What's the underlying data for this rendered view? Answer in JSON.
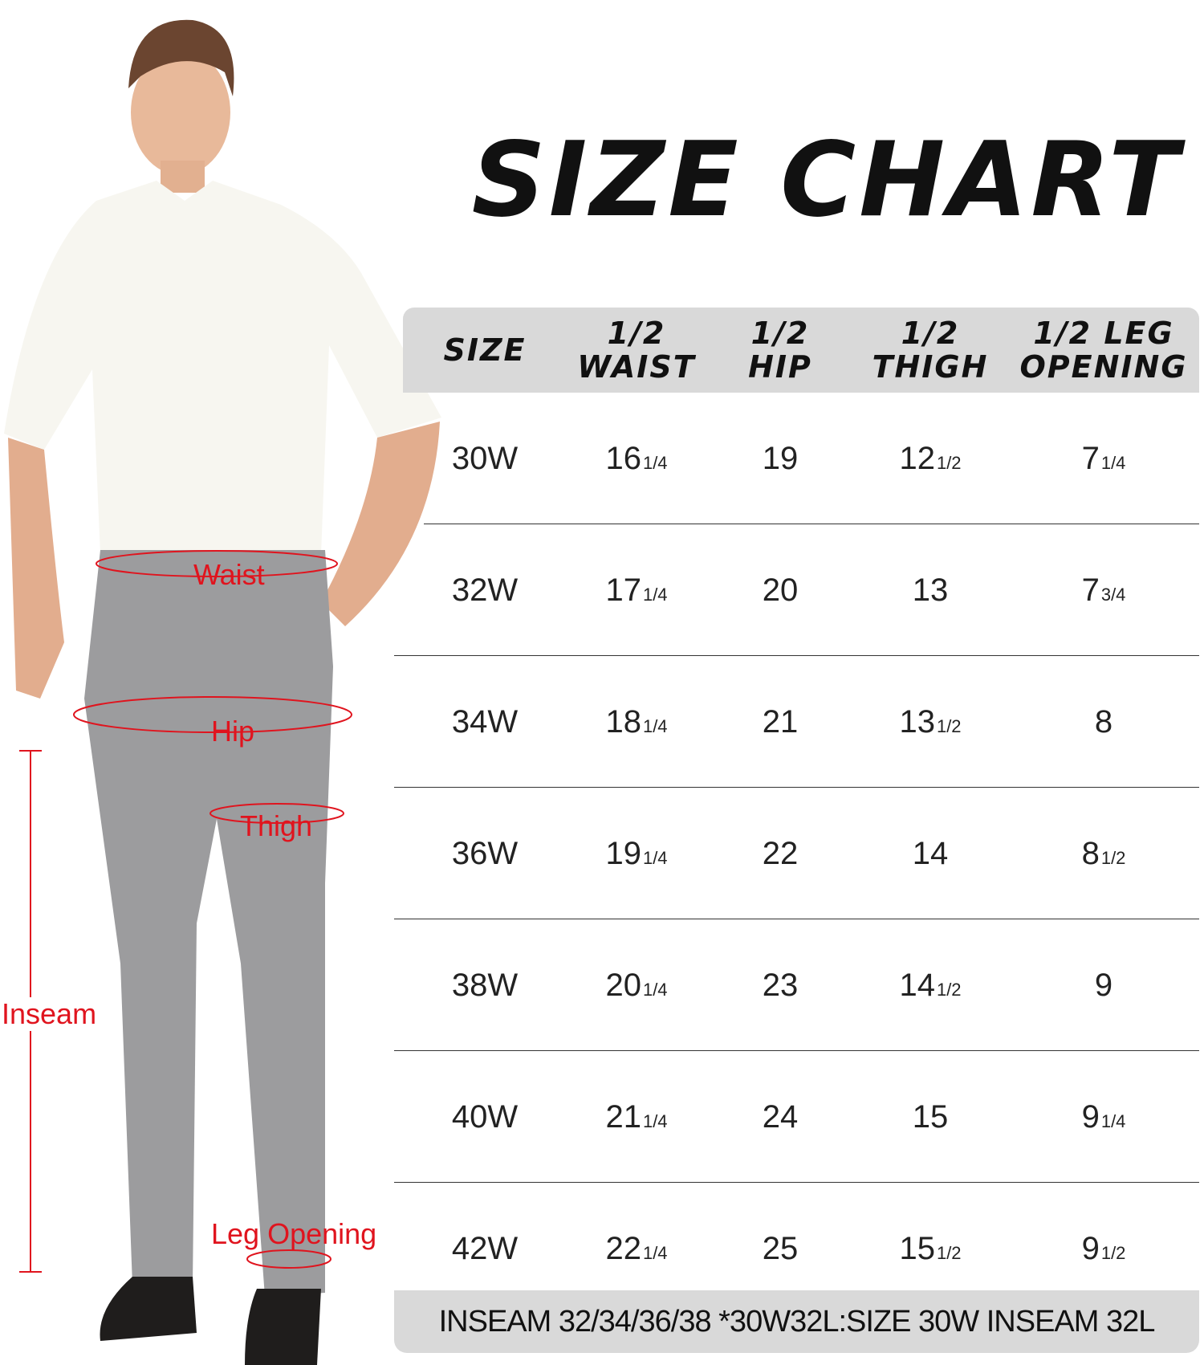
{
  "title": "SIZE CHART",
  "table": {
    "headers": [
      "SIZE",
      "1/2\nWAIST",
      "1/2\nHIP",
      "1/2\nTHIGH",
      "1/2 LEG\nOPENING"
    ],
    "rows": [
      [
        {
          "w": "30W",
          "f": ""
        },
        {
          "w": "16",
          "f": "1/4"
        },
        {
          "w": "19",
          "f": ""
        },
        {
          "w": "12",
          "f": "1/2"
        },
        {
          "w": "7",
          "f": "1/4"
        }
      ],
      [
        {
          "w": "32W",
          "f": ""
        },
        {
          "w": "17",
          "f": "1/4"
        },
        {
          "w": "20",
          "f": ""
        },
        {
          "w": "13",
          "f": ""
        },
        {
          "w": "7",
          "f": "3/4"
        }
      ],
      [
        {
          "w": "34W",
          "f": ""
        },
        {
          "w": "18",
          "f": "1/4"
        },
        {
          "w": "21",
          "f": ""
        },
        {
          "w": "13",
          "f": "1/2"
        },
        {
          "w": "8",
          "f": ""
        }
      ],
      [
        {
          "w": "36W",
          "f": ""
        },
        {
          "w": "19",
          "f": "1/4"
        },
        {
          "w": "22",
          "f": ""
        },
        {
          "w": "14",
          "f": ""
        },
        {
          "w": "8",
          "f": "1/2"
        }
      ],
      [
        {
          "w": "38W",
          "f": ""
        },
        {
          "w": "20",
          "f": "1/4"
        },
        {
          "w": "23",
          "f": ""
        },
        {
          "w": "14",
          "f": "1/2"
        },
        {
          "w": "9",
          "f": ""
        }
      ],
      [
        {
          "w": "40W",
          "f": ""
        },
        {
          "w": "21",
          "f": "1/4"
        },
        {
          "w": "24",
          "f": ""
        },
        {
          "w": "15",
          "f": ""
        },
        {
          "w": "9",
          "f": "1/4"
        }
      ],
      [
        {
          "w": "42W",
          "f": ""
        },
        {
          "w": "22",
          "f": "1/4"
        },
        {
          "w": "25",
          "f": ""
        },
        {
          "w": "15",
          "f": "1/2"
        },
        {
          "w": "9",
          "f": "1/2"
        }
      ]
    ]
  },
  "footer": "INSEAM 32/34/36/38 *30W32L:SIZE 30W INSEAM 32L",
  "figure": {
    "labels": {
      "waist": "Waist",
      "hip": "Hip",
      "thigh": "Thigh",
      "inseam": "Inseam",
      "leg_opening": "Leg Opening"
    },
    "annotation_color": "#e0141e"
  }
}
